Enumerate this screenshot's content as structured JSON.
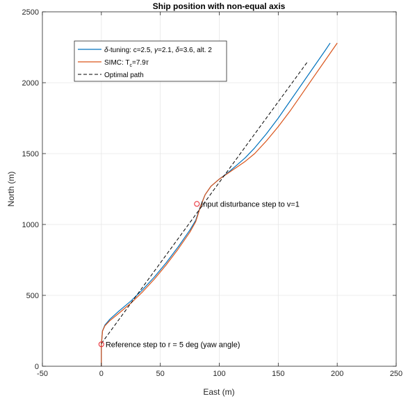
{
  "chart_data": {
    "type": "line",
    "title": "Ship position with non-equal axis",
    "xlabel": "East (m)",
    "ylabel": "North (m)",
    "xlim": [
      -50,
      250
    ],
    "ylim": [
      0,
      2500
    ],
    "xticks": [
      -50,
      0,
      50,
      100,
      150,
      200,
      250
    ],
    "yticks": [
      0,
      500,
      1000,
      1500,
      2000,
      2500
    ],
    "xtick_labels": [
      "-50",
      "0",
      "50",
      "100",
      "150",
      "200",
      "250"
    ],
    "ytick_labels": [
      "0",
      "500",
      "1000",
      "1500",
      "2000",
      "2500"
    ],
    "grid": true,
    "legend_position": "top-left",
    "series": [
      {
        "name": "δ-tuning: c=2.5, γ=2.1, δ=3.6, alt. 2",
        "color": "#0072BD",
        "style": "solid",
        "x": [
          0,
          0,
          1,
          3,
          7,
          15,
          25,
          35,
          45,
          55,
          65,
          75,
          80,
          84,
          88,
          93,
          100,
          108,
          115,
          122,
          130,
          140,
          150,
          160,
          170,
          180,
          190,
          194
        ],
        "y": [
          0,
          150,
          250,
          290,
          330,
          390,
          460,
          540,
          630,
          730,
          840,
          960,
          1030,
          1130,
          1210,
          1270,
          1320,
          1370,
          1420,
          1470,
          1540,
          1640,
          1750,
          1870,
          1990,
          2110,
          2230,
          2280
        ]
      },
      {
        "name": "SIMC: T_c=7.9τ",
        "color": "#D95319",
        "style": "solid",
        "x": [
          0,
          0,
          1,
          3,
          7,
          15,
          25,
          35,
          45,
          55,
          65,
          75,
          80,
          84,
          88,
          93,
          100,
          108,
          115,
          122,
          130,
          140,
          150,
          160,
          170,
          180,
          190,
          200
        ],
        "y": [
          0,
          150,
          248,
          285,
          320,
          375,
          445,
          525,
          615,
          715,
          825,
          945,
          1020,
          1125,
          1210,
          1270,
          1320,
          1365,
          1405,
          1445,
          1500,
          1590,
          1690,
          1800,
          1920,
          2040,
          2160,
          2280
        ]
      },
      {
        "name": "Optimal path",
        "color": "#000000",
        "style": "dashed",
        "x": [
          0,
          175
        ],
        "y": [
          160,
          2150
        ]
      }
    ],
    "legend": {
      "entries": [
        {
          "prefix": "δ",
          "text": "-tuning: c=2.5, ",
          "gamma": "γ",
          "text2": "=2.1, ",
          "delta": "δ",
          "text3": "=3.6, alt. 2"
        },
        {
          "prefix": "SIMC: T",
          "sub": "c",
          "text": "=7.9",
          "tau": "τ"
        },
        {
          "text": "Optimal path"
        }
      ]
    },
    "annotations": [
      {
        "text": "Input disturbance step to v=1",
        "x": 81,
        "y": 1145
      },
      {
        "text": "Reference step to r = 5 deg (yaw angle)",
        "x": 0,
        "y": 155
      }
    ]
  }
}
